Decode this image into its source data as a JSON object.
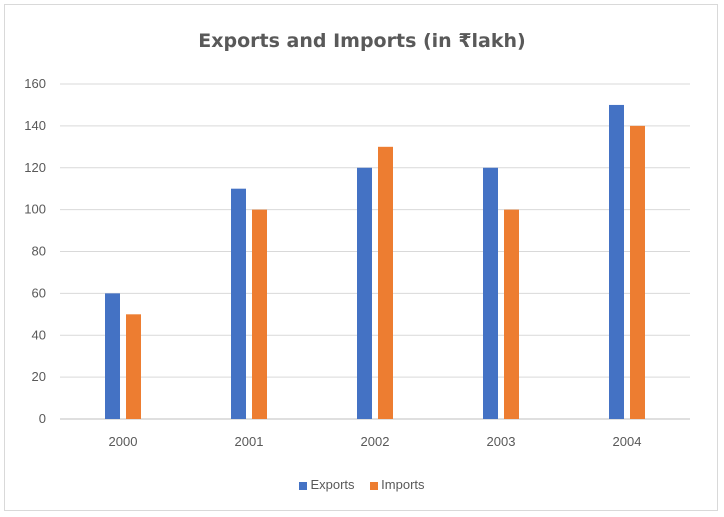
{
  "chart_data": {
    "type": "bar",
    "title": "Exports and Imports (in ₹lakh)",
    "categories": [
      "2000",
      "2001",
      "2002",
      "2003",
      "2004"
    ],
    "series": [
      {
        "name": "Exports",
        "values": [
          60,
          110,
          120,
          120,
          150
        ],
        "color": "#4472C4"
      },
      {
        "name": "Imports",
        "values": [
          50,
          100,
          130,
          100,
          140
        ],
        "color": "#ED7D31"
      }
    ],
    "yticks": [
      "0",
      "20",
      "40",
      "60",
      "80",
      "100",
      "120",
      "140",
      "160"
    ],
    "ylim": [
      0,
      160
    ],
    "grid": true,
    "legend_position": "bottom"
  }
}
